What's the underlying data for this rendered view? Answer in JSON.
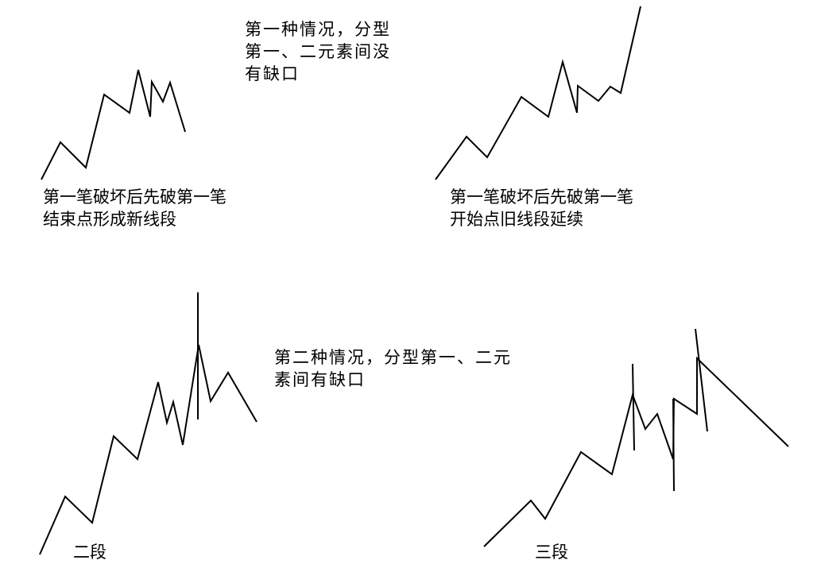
{
  "caption_case1": [
    "第一种情况，分型",
    "第一、二元素间没",
    "有缺口"
  ],
  "caption_left_top": [
    "第一笔破坏后先破第一笔",
    "结束点形成新线段"
  ],
  "caption_right_top": [
    "第一笔破坏后先破第一笔",
    "开始点旧线段延续"
  ],
  "caption_case2": [
    "第二种情况，分型第一、二元",
    "素间有缺口"
  ],
  "label_two_segments": "二段",
  "label_three_segments": "三段",
  "line_color": "#000000"
}
